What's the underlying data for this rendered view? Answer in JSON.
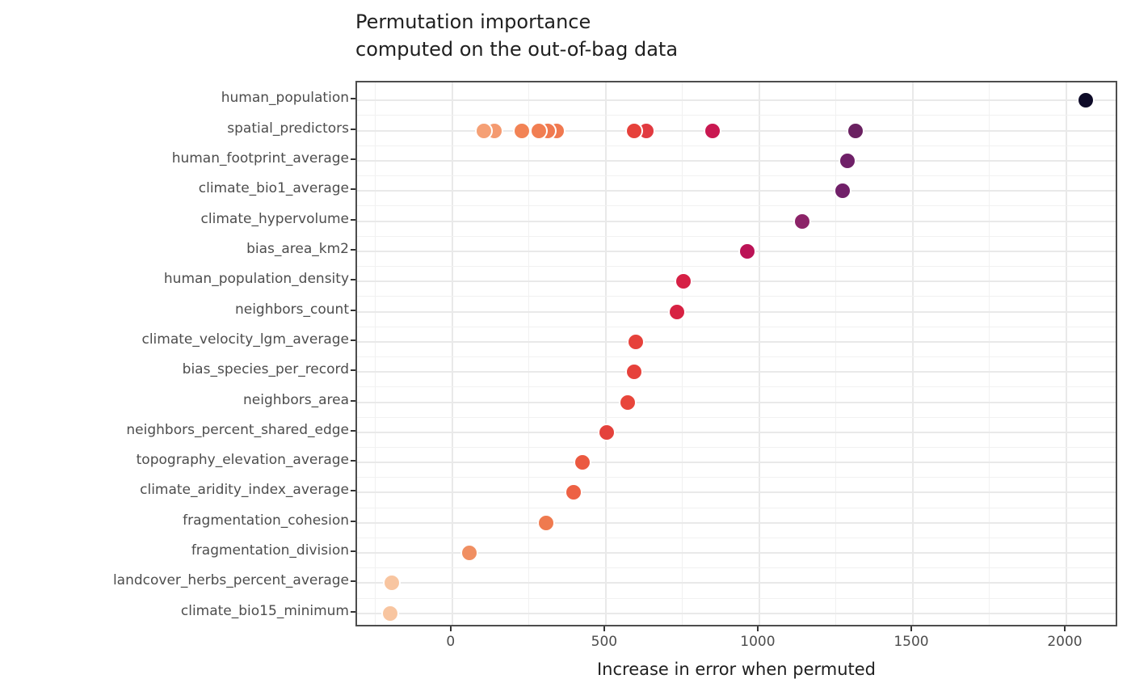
{
  "title": {
    "line1": "Permutation importance",
    "line2": "computed on the out-of-bag data"
  },
  "colors": {
    "panel_border": "#4d4d4d",
    "grid_major": "#e9e9e9",
    "grid_minor": "#f1f1f1",
    "tick_label": "#4d4d4d",
    "text": "#1f1f1f",
    "background": "#ffffff"
  },
  "chart_data": {
    "type": "scatter",
    "title": "Permutation importance computed on the out-of-bag data",
    "xlabel": "Increase in error when permuted",
    "ylabel": "",
    "x_domain": [
      -310,
      2171
    ],
    "x_ticks": [
      0,
      500,
      1000,
      1500,
      2000
    ],
    "x_minor_gridlines": [
      -250,
      250,
      750,
      1250,
      1750
    ],
    "grid": "on",
    "legend": "none",
    "point_color_meaning": "importance value, dark = high (reversed magma-like palette)",
    "rows": [
      {
        "label": "human_population",
        "dots": [
          {
            "value": 2063,
            "color": "#0E0B28"
          }
        ]
      },
      {
        "label": "spatial_predictors",
        "dots": [
          {
            "value": 103,
            "color": "#F5A075"
          },
          {
            "value": 137,
            "color": "#F49A70"
          },
          {
            "value": 226,
            "color": "#F28355"
          },
          {
            "value": 282,
            "color": "#F17E52"
          },
          {
            "value": 312,
            "color": "#F07950"
          },
          {
            "value": 340,
            "color": "#F07950"
          },
          {
            "value": 593,
            "color": "#E6413B"
          },
          {
            "value": 632,
            "color": "#E13A40"
          },
          {
            "value": 847,
            "color": "#C91851"
          },
          {
            "value": 1314,
            "color": "#6A2161"
          }
        ]
      },
      {
        "label": "human_footprint_average",
        "dots": [
          {
            "value": 1286,
            "color": "#6F2068"
          }
        ]
      },
      {
        "label": "climate_bio1_average",
        "dots": [
          {
            "value": 1270,
            "color": "#712069"
          }
        ]
      },
      {
        "label": "climate_hypervolume",
        "dots": [
          {
            "value": 1139,
            "color": "#8C2368"
          }
        ]
      },
      {
        "label": "bias_area_km2",
        "dots": [
          {
            "value": 960,
            "color": "#BB1356"
          }
        ]
      },
      {
        "label": "human_population_density",
        "dots": [
          {
            "value": 753,
            "color": "#D62045"
          }
        ]
      },
      {
        "label": "neighbors_count",
        "dots": [
          {
            "value": 731,
            "color": "#D72243"
          }
        ]
      },
      {
        "label": "climate_velocity_lgm_average",
        "dots": [
          {
            "value": 597,
            "color": "#E6413B"
          }
        ]
      },
      {
        "label": "bias_species_per_record",
        "dots": [
          {
            "value": 593,
            "color": "#E6413B"
          }
        ]
      },
      {
        "label": "neighbors_area",
        "dots": [
          {
            "value": 571,
            "color": "#E8463B"
          }
        ]
      },
      {
        "label": "neighbors_percent_shared_edge",
        "dots": [
          {
            "value": 503,
            "color": "#E4423C"
          }
        ]
      },
      {
        "label": "topography_elevation_average",
        "dots": [
          {
            "value": 424,
            "color": "#EB5940"
          }
        ]
      },
      {
        "label": "climate_aridity_index_average",
        "dots": [
          {
            "value": 396,
            "color": "#ED6144"
          }
        ]
      },
      {
        "label": "fragmentation_cohesion",
        "dots": [
          {
            "value": 306,
            "color": "#EF7A4F"
          }
        ]
      },
      {
        "label": "fragmentation_division",
        "dots": [
          {
            "value": 55,
            "color": "#F08F62"
          }
        ]
      },
      {
        "label": "landcover_herbs_percent_average",
        "dots": [
          {
            "value": -196,
            "color": "#F8C5A0"
          }
        ]
      },
      {
        "label": "climate_bio15_minimum",
        "dots": [
          {
            "value": -203,
            "color": "#F8C5A0"
          }
        ]
      }
    ]
  }
}
